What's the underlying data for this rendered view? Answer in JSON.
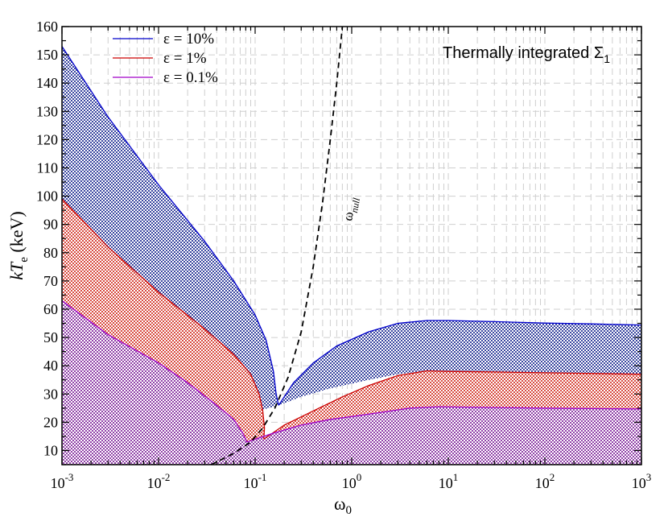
{
  "chart_data": {
    "type": "area",
    "title": "",
    "annotation": {
      "text": "Thermally integrated Σ",
      "sub": "1"
    },
    "xlabel": {
      "text": "ω",
      "sub": "0"
    },
    "ylabel": {
      "text": "kT",
      "sub": "e",
      "suffix": " (keV)"
    },
    "xscale": "log",
    "xlim": [
      0.001,
      1000
    ],
    "ylim": [
      5,
      160
    ],
    "xticks": [
      {
        "base": "10",
        "exp": "-3"
      },
      {
        "base": "10",
        "exp": "-2"
      },
      {
        "base": "10",
        "exp": "-1"
      },
      {
        "base": "10",
        "exp": "0"
      },
      {
        "base": "10",
        "exp": "1"
      },
      {
        "base": "10",
        "exp": "2"
      },
      {
        "base": "10",
        "exp": "3"
      }
    ],
    "yticks": [
      "10",
      "20",
      "30",
      "40",
      "50",
      "60",
      "70",
      "80",
      "90",
      "100",
      "110",
      "120",
      "130",
      "140",
      "150",
      "160"
    ],
    "grid": true,
    "legend_position": "top-left",
    "series": [
      {
        "name": "ε = 10%",
        "color": "#0000cc",
        "fill": "#5a66b0",
        "left": [
          [
            0.001,
            153
          ],
          [
            0.003,
            128
          ],
          [
            0.01,
            104
          ],
          [
            0.03,
            84
          ],
          [
            0.06,
            70
          ],
          [
            0.1,
            58
          ],
          [
            0.13,
            49
          ],
          [
            0.155,
            38
          ],
          [
            0.165,
            30
          ],
          [
            0.175,
            26
          ]
        ],
        "right": [
          [
            0.175,
            26
          ],
          [
            0.25,
            34
          ],
          [
            0.4,
            41
          ],
          [
            0.7,
            47
          ],
          [
            1.5,
            52
          ],
          [
            3,
            55
          ],
          [
            6,
            56
          ],
          [
            10,
            56
          ],
          [
            30,
            55.6
          ],
          [
            100,
            55.1
          ],
          [
            300,
            54.8
          ],
          [
            1000,
            54.4
          ]
        ],
        "lower_right": [
          [
            0.175,
            26
          ],
          [
            0.3,
            29
          ],
          [
            0.6,
            32
          ],
          [
            1.5,
            35
          ],
          [
            3,
            37
          ],
          [
            6,
            38.2
          ],
          [
            10,
            38
          ],
          [
            30,
            37.8
          ],
          [
            100,
            37.5
          ],
          [
            1000,
            37
          ]
        ]
      },
      {
        "name": "ε = 1%",
        "color": "#cc0000",
        "fill": "#e06860",
        "left": [
          [
            0.001,
            99
          ],
          [
            0.003,
            82
          ],
          [
            0.01,
            66
          ],
          [
            0.03,
            53
          ],
          [
            0.06,
            44
          ],
          [
            0.09,
            37
          ],
          [
            0.11,
            30
          ],
          [
            0.12,
            24
          ],
          [
            0.125,
            18
          ],
          [
            0.123,
            14
          ]
        ],
        "right": [
          [
            0.123,
            14
          ],
          [
            0.2,
            19
          ],
          [
            0.4,
            24
          ],
          [
            0.8,
            29
          ],
          [
            1.5,
            33
          ],
          [
            3,
            36.5
          ],
          [
            6,
            38.2
          ],
          [
            10,
            38
          ],
          [
            30,
            37.8
          ],
          [
            100,
            37.5
          ],
          [
            1000,
            37
          ]
        ],
        "lower_right": [
          [
            0.123,
            14
          ],
          [
            0.25,
            17
          ],
          [
            0.5,
            19.5
          ],
          [
            1,
            21.5
          ],
          [
            2,
            23.5
          ],
          [
            4,
            25
          ],
          [
            8,
            25.5
          ],
          [
            30,
            25.2
          ],
          [
            100,
            25
          ],
          [
            1000,
            24.7
          ]
        ]
      },
      {
        "name": "ε = 0.1%",
        "color": "#a000c8",
        "fill": "#b060c0",
        "left": [
          [
            0.001,
            63
          ],
          [
            0.003,
            51
          ],
          [
            0.01,
            41
          ],
          [
            0.02,
            34
          ],
          [
            0.04,
            26
          ],
          [
            0.06,
            21
          ],
          [
            0.075,
            16
          ],
          [
            0.082,
            13
          ]
        ],
        "right": [
          [
            0.082,
            13
          ],
          [
            0.15,
            16
          ],
          [
            0.3,
            19
          ],
          [
            0.6,
            21
          ],
          [
            1,
            22
          ],
          [
            2,
            23.5
          ],
          [
            4,
            25
          ],
          [
            8,
            25.5
          ],
          [
            30,
            25.2
          ],
          [
            100,
            25
          ],
          [
            1000,
            24.7
          ]
        ]
      }
    ],
    "null_line": {
      "label": "ω",
      "label_sub": "null",
      "points": [
        [
          0.035,
          5
        ],
        [
          0.06,
          9
        ],
        [
          0.09,
          13
        ],
        [
          0.12,
          18
        ],
        [
          0.16,
          25
        ],
        [
          0.22,
          36
        ],
        [
          0.3,
          52
        ],
        [
          0.4,
          75
        ],
        [
          0.5,
          98
        ],
        [
          0.6,
          120
        ],
        [
          0.7,
          140
        ],
        [
          0.8,
          160
        ]
      ]
    }
  }
}
